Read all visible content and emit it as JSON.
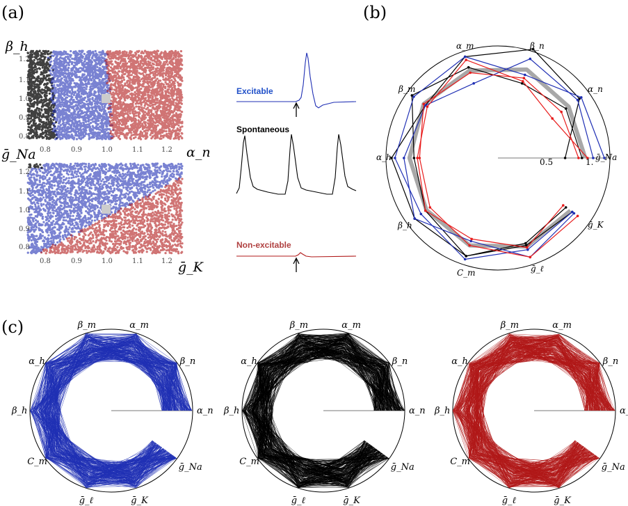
{
  "panel_labels": {
    "a": "(a)",
    "b": "(b)",
    "c": "(c)"
  },
  "colors": {
    "excitable": "#1f2fb4",
    "spontaneous": "#000000",
    "nonexcitable": "#b01818",
    "mean": "#a8a8a8",
    "red_line": "#e81c1c",
    "square": "#cccccc"
  },
  "scatter_top": {
    "xlabel": "α_n",
    "ylabel": "β_h",
    "xticks": [
      "0.8",
      "0.9",
      "1.0",
      "1.1",
      "1.2"
    ],
    "yticks": [
      "1.2",
      "1.1",
      "1.0",
      "0.9",
      "0.8"
    ]
  },
  "scatter_bottom": {
    "xlabel": "ḡ_K",
    "ylabel": "ḡ_Na",
    "xticks": [
      "0.8",
      "0.9",
      "1.0",
      "1.1",
      "1.2"
    ],
    "yticks": [
      "1.2",
      "1.1",
      "1.0",
      "0.9",
      "0.8"
    ]
  },
  "traces": {
    "excitable": "Excitable",
    "spontaneous": "Spontaneous",
    "nonexcitable": "Non-excitable"
  },
  "radar_b": {
    "axes": [
      "ḡ_Na",
      "α_n",
      "β_n",
      "α_m",
      "β_m",
      "α_h",
      "β_h",
      "C_m",
      "ḡ_ℓ",
      "ḡ_K"
    ],
    "ticks": [
      "0.5",
      "1."
    ]
  },
  "radar_c": {
    "axes": [
      "α_n",
      "β_n",
      "α_m",
      "β_m",
      "α_h",
      "β_h",
      "C_m",
      "ḡ_ℓ",
      "ḡ_K",
      "ḡ_Na"
    ]
  }
}
